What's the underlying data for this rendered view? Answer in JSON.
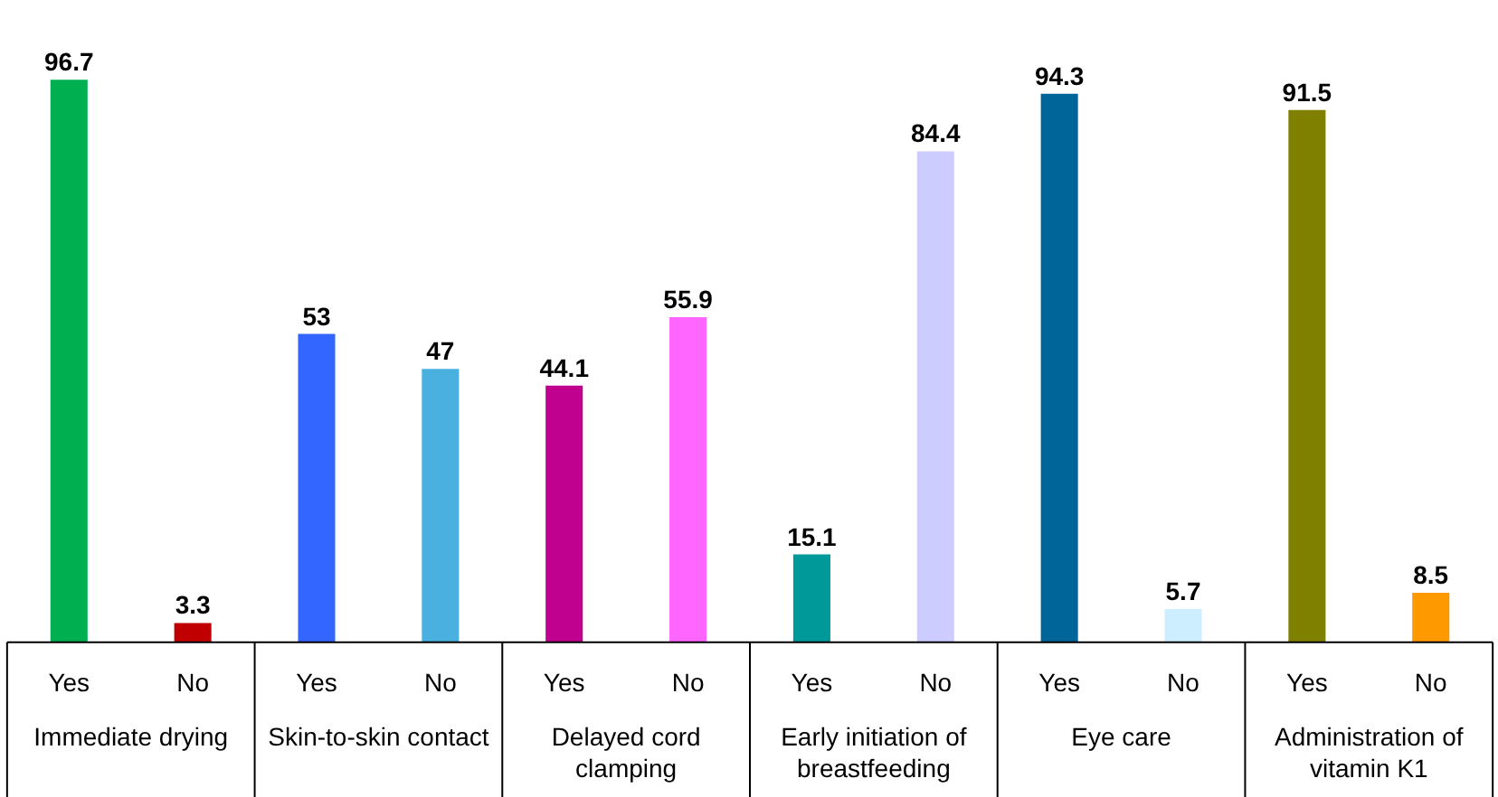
{
  "chart_data": {
    "type": "bar",
    "categories": [
      "Yes",
      "No",
      "Yes",
      "No",
      "Yes",
      "No",
      "Yes",
      "No",
      "Yes",
      "No",
      "Yes",
      "No"
    ],
    "values": [
      96.7,
      3.3,
      53,
      47,
      44.1,
      55.9,
      15.1,
      84.4,
      94.3,
      5.7,
      91.5,
      8.5
    ],
    "colors": [
      "#00b050",
      "#c00000",
      "#3366ff",
      "#4ab0e0",
      "#c0008f",
      "#ff66ff",
      "#009999",
      "#ccccff",
      "#006699",
      "#cceeff",
      "#808000",
      "#ff9900"
    ],
    "data_labels": true,
    "annotations": [
      "Immediate drying",
      "Skin-to-skin contact",
      "Delayed cord\nclamping",
      "Early initiation of\nbreastfeeding",
      "Eye care",
      "Administration of\nvitamin K1"
    ]
  }
}
